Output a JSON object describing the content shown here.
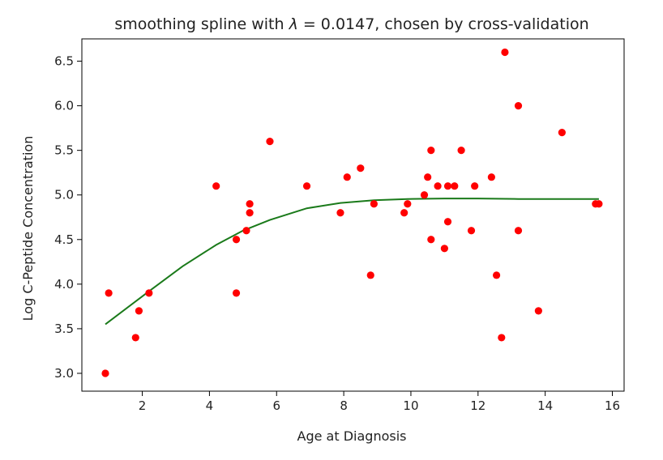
{
  "chart_data": {
    "type": "scatter",
    "title_text": "smoothing spline with ",
    "title_lambda": "λ",
    "title_rest": " = 0.0147, chosen by cross-validation",
    "xlabel": "Age at Diagnosis",
    "ylabel": "Log C-Peptide Concentration",
    "xlim": [
      0.2,
      16.35
    ],
    "ylim": [
      2.8,
      6.75
    ],
    "xticks": [
      2,
      4,
      6,
      8,
      10,
      12,
      14,
      16
    ],
    "yticks": [
      3.0,
      3.5,
      4.0,
      4.5,
      5.0,
      5.5,
      6.0,
      6.5
    ],
    "grid": false,
    "point_color": "#ff0000",
    "line_color": "#1a7a1a",
    "points": [
      {
        "x": 0.9,
        "y": 3.0
      },
      {
        "x": 1.0,
        "y": 3.9
      },
      {
        "x": 1.8,
        "y": 3.4
      },
      {
        "x": 1.9,
        "y": 3.7
      },
      {
        "x": 2.2,
        "y": 3.9
      },
      {
        "x": 4.2,
        "y": 5.1
      },
      {
        "x": 4.8,
        "y": 4.5
      },
      {
        "x": 4.8,
        "y": 3.9
      },
      {
        "x": 5.1,
        "y": 4.6
      },
      {
        "x": 5.2,
        "y": 4.8
      },
      {
        "x": 5.2,
        "y": 4.9
      },
      {
        "x": 5.8,
        "y": 5.6
      },
      {
        "x": 6.9,
        "y": 5.1
      },
      {
        "x": 7.9,
        "y": 4.8
      },
      {
        "x": 8.1,
        "y": 5.2
      },
      {
        "x": 8.5,
        "y": 5.3
      },
      {
        "x": 8.8,
        "y": 4.1
      },
      {
        "x": 8.9,
        "y": 4.9
      },
      {
        "x": 9.8,
        "y": 4.8
      },
      {
        "x": 9.9,
        "y": 4.9
      },
      {
        "x": 10.4,
        "y": 5.0
      },
      {
        "x": 10.5,
        "y": 5.2
      },
      {
        "x": 10.6,
        "y": 5.5
      },
      {
        "x": 10.6,
        "y": 4.5
      },
      {
        "x": 10.8,
        "y": 5.1
      },
      {
        "x": 11.0,
        "y": 4.4
      },
      {
        "x": 11.1,
        "y": 5.1
      },
      {
        "x": 11.1,
        "y": 4.7
      },
      {
        "x": 11.3,
        "y": 5.1
      },
      {
        "x": 11.5,
        "y": 5.5
      },
      {
        "x": 11.8,
        "y": 4.6
      },
      {
        "x": 11.9,
        "y": 5.1
      },
      {
        "x": 12.4,
        "y": 5.2
      },
      {
        "x": 12.55,
        "y": 4.1
      },
      {
        "x": 12.7,
        "y": 3.4
      },
      {
        "x": 12.8,
        "y": 6.6
      },
      {
        "x": 13.2,
        "y": 6.0
      },
      {
        "x": 13.2,
        "y": 4.6
      },
      {
        "x": 13.8,
        "y": 3.7
      },
      {
        "x": 14.5,
        "y": 5.7
      },
      {
        "x": 15.5,
        "y": 4.9
      },
      {
        "x": 15.6,
        "y": 4.9
      }
    ],
    "spline": [
      {
        "x": 0.9,
        "y": 3.55
      },
      {
        "x": 2.2,
        "y": 3.92
      },
      {
        "x": 3.2,
        "y": 4.2
      },
      {
        "x": 4.2,
        "y": 4.44
      },
      {
        "x": 5.0,
        "y": 4.6
      },
      {
        "x": 5.8,
        "y": 4.72
      },
      {
        "x": 6.9,
        "y": 4.85
      },
      {
        "x": 7.9,
        "y": 4.91
      },
      {
        "x": 8.9,
        "y": 4.94
      },
      {
        "x": 9.9,
        "y": 4.955
      },
      {
        "x": 11.0,
        "y": 4.96
      },
      {
        "x": 12.0,
        "y": 4.96
      },
      {
        "x": 13.2,
        "y": 4.955
      },
      {
        "x": 14.5,
        "y": 4.955
      },
      {
        "x": 15.6,
        "y": 4.955
      }
    ]
  }
}
